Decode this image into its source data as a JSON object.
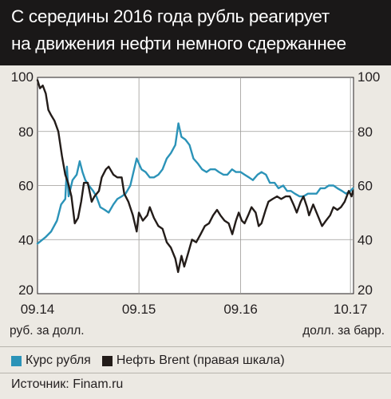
{
  "title_line1": "С середины 2016 года рубль реагирует",
  "title_line2": "на движения нефти немного сдержаннее",
  "source": "Источник: Finam.ru",
  "colors": {
    "rub": "#2b93b8",
    "brent": "#231c19",
    "background": "#ece9e3"
  },
  "chart_data": {
    "type": "line",
    "x_tick_labels": [
      "09.14",
      "09.15",
      "09.16",
      "10.17"
    ],
    "xlim": [
      "2014-09",
      "2017-10"
    ],
    "y_left": {
      "label": "руб. за долл.",
      "ylim": [
        20,
        100
      ],
      "ticks": [
        20,
        40,
        60,
        80,
        100
      ]
    },
    "y_right": {
      "label": "долл. за барр.",
      "ylim": [
        20,
        100
      ],
      "ticks": [
        20,
        40,
        60,
        80,
        100
      ]
    },
    "grid": true,
    "legend_position": "bottom",
    "series": [
      {
        "name": "Курс рубля",
        "axis": "left",
        "color": "#2b93b8",
        "points": [
          [
            "2014-09-01",
            38.5
          ],
          [
            "2014-10-01",
            41
          ],
          [
            "2014-10-20",
            43
          ],
          [
            "2014-11-10",
            47
          ],
          [
            "2014-11-25",
            53
          ],
          [
            "2014-12-10",
            55
          ],
          [
            "2014-12-16",
            67
          ],
          [
            "2014-12-22",
            56
          ],
          [
            "2015-01-05",
            62
          ],
          [
            "2015-01-20",
            64
          ],
          [
            "2015-01-31",
            69
          ],
          [
            "2015-02-10",
            65
          ],
          [
            "2015-02-20",
            62
          ],
          [
            "2015-03-05",
            60
          ],
          [
            "2015-03-20",
            58
          ],
          [
            "2015-04-01",
            56
          ],
          [
            "2015-04-15",
            52
          ],
          [
            "2015-05-01",
            51
          ],
          [
            "2015-05-15",
            50
          ],
          [
            "2015-06-01",
            53
          ],
          [
            "2015-06-15",
            55
          ],
          [
            "2015-07-01",
            56
          ],
          [
            "2015-07-15",
            57
          ],
          [
            "2015-08-01",
            60
          ],
          [
            "2015-08-10",
            64
          ],
          [
            "2015-08-24",
            70
          ],
          [
            "2015-09-10",
            66
          ],
          [
            "2015-09-25",
            65
          ],
          [
            "2015-10-10",
            63
          ],
          [
            "2015-10-25",
            63
          ],
          [
            "2015-11-10",
            64
          ],
          [
            "2015-11-25",
            66
          ],
          [
            "2015-12-10",
            70
          ],
          [
            "2015-12-25",
            72
          ],
          [
            "2016-01-10",
            75
          ],
          [
            "2016-01-21",
            83
          ],
          [
            "2016-02-01",
            78
          ],
          [
            "2016-02-15",
            77
          ],
          [
            "2016-03-01",
            75
          ],
          [
            "2016-03-15",
            70
          ],
          [
            "2016-04-01",
            68
          ],
          [
            "2016-04-15",
            66
          ],
          [
            "2016-05-01",
            65
          ],
          [
            "2016-05-15",
            66
          ],
          [
            "2016-06-01",
            66
          ],
          [
            "2016-06-15",
            65
          ],
          [
            "2016-07-01",
            64
          ],
          [
            "2016-07-15",
            64
          ],
          [
            "2016-08-01",
            66
          ],
          [
            "2016-08-15",
            65
          ],
          [
            "2016-09-01",
            65
          ],
          [
            "2016-09-15",
            64
          ],
          [
            "2016-10-01",
            63
          ],
          [
            "2016-10-15",
            62
          ],
          [
            "2016-11-01",
            64
          ],
          [
            "2016-11-15",
            65
          ],
          [
            "2016-12-01",
            64
          ],
          [
            "2016-12-15",
            61
          ],
          [
            "2017-01-01",
            61
          ],
          [
            "2017-01-15",
            59
          ],
          [
            "2017-02-01",
            60
          ],
          [
            "2017-02-15",
            58
          ],
          [
            "2017-03-01",
            58
          ],
          [
            "2017-03-15",
            57
          ],
          [
            "2017-04-01",
            56
          ],
          [
            "2017-04-15",
            56
          ],
          [
            "2017-05-01",
            57
          ],
          [
            "2017-05-15",
            57
          ],
          [
            "2017-06-01",
            57
          ],
          [
            "2017-06-15",
            59
          ],
          [
            "2017-07-01",
            59
          ],
          [
            "2017-07-15",
            60
          ],
          [
            "2017-08-01",
            60
          ],
          [
            "2017-08-15",
            59
          ],
          [
            "2017-09-01",
            58
          ],
          [
            "2017-09-15",
            57
          ],
          [
            "2017-10-01",
            58
          ],
          [
            "2017-10-10",
            59
          ]
        ]
      },
      {
        "name": "Нефть Brent (правая шкала)",
        "axis": "right",
        "color": "#231c19",
        "points": [
          [
            "2014-09-01",
            99
          ],
          [
            "2014-09-10",
            96
          ],
          [
            "2014-09-20",
            97
          ],
          [
            "2014-10-01",
            94
          ],
          [
            "2014-10-10",
            88
          ],
          [
            "2014-10-20",
            86
          ],
          [
            "2014-11-01",
            84
          ],
          [
            "2014-11-15",
            80
          ],
          [
            "2014-11-28",
            71
          ],
          [
            "2014-12-10",
            64
          ],
          [
            "2014-12-20",
            61
          ],
          [
            "2015-01-01",
            56
          ],
          [
            "2015-01-13",
            46
          ],
          [
            "2015-01-25",
            48
          ],
          [
            "2015-02-05",
            54
          ],
          [
            "2015-02-15",
            61
          ],
          [
            "2015-03-01",
            61
          ],
          [
            "2015-03-15",
            54
          ],
          [
            "2015-03-25",
            56
          ],
          [
            "2015-04-10",
            58
          ],
          [
            "2015-04-20",
            63
          ],
          [
            "2015-05-05",
            66
          ],
          [
            "2015-05-15",
            67
          ],
          [
            "2015-06-01",
            64
          ],
          [
            "2015-06-15",
            63
          ],
          [
            "2015-07-01",
            63
          ],
          [
            "2015-07-10",
            57
          ],
          [
            "2015-07-25",
            54
          ],
          [
            "2015-08-10",
            49
          ],
          [
            "2015-08-24",
            43
          ],
          [
            "2015-09-01",
            50
          ],
          [
            "2015-09-15",
            47
          ],
          [
            "2015-10-01",
            49
          ],
          [
            "2015-10-10",
            52
          ],
          [
            "2015-10-25",
            48
          ],
          [
            "2015-11-10",
            45
          ],
          [
            "2015-11-25",
            44
          ],
          [
            "2015-12-10",
            39
          ],
          [
            "2015-12-25",
            37
          ],
          [
            "2016-01-10",
            33
          ],
          [
            "2016-01-20",
            28
          ],
          [
            "2016-02-01",
            34
          ],
          [
            "2016-02-11",
            30
          ],
          [
            "2016-02-25",
            35
          ],
          [
            "2016-03-10",
            40
          ],
          [
            "2016-03-25",
            39
          ],
          [
            "2016-04-10",
            42
          ],
          [
            "2016-04-25",
            45
          ],
          [
            "2016-05-10",
            46
          ],
          [
            "2016-05-25",
            49
          ],
          [
            "2016-06-08",
            51
          ],
          [
            "2016-06-20",
            49
          ],
          [
            "2016-07-05",
            47
          ],
          [
            "2016-07-20",
            46
          ],
          [
            "2016-08-02",
            42
          ],
          [
            "2016-08-15",
            47
          ],
          [
            "2016-08-25",
            50
          ],
          [
            "2016-09-05",
            47
          ],
          [
            "2016-09-15",
            46
          ],
          [
            "2016-09-28",
            49
          ],
          [
            "2016-10-10",
            52
          ],
          [
            "2016-10-25",
            50
          ],
          [
            "2016-11-05",
            45
          ],
          [
            "2016-11-15",
            46
          ],
          [
            "2016-11-30",
            51
          ],
          [
            "2016-12-10",
            54
          ],
          [
            "2016-12-25",
            55
          ],
          [
            "2017-01-10",
            56
          ],
          [
            "2017-01-25",
            55
          ],
          [
            "2017-02-10",
            56
          ],
          [
            "2017-02-25",
            56
          ],
          [
            "2017-03-10",
            53
          ],
          [
            "2017-03-22",
            50
          ],
          [
            "2017-04-05",
            54
          ],
          [
            "2017-04-15",
            56
          ],
          [
            "2017-04-28",
            52
          ],
          [
            "2017-05-05",
            49
          ],
          [
            "2017-05-20",
            53
          ],
          [
            "2017-06-05",
            49
          ],
          [
            "2017-06-21",
            45
          ],
          [
            "2017-07-05",
            47
          ],
          [
            "2017-07-20",
            49
          ],
          [
            "2017-08-01",
            52
          ],
          [
            "2017-08-15",
            51
          ],
          [
            "2017-08-28",
            52
          ],
          [
            "2017-09-10",
            54
          ],
          [
            "2017-09-25",
            58
          ],
          [
            "2017-10-05",
            56
          ],
          [
            "2017-10-10",
            58
          ]
        ]
      }
    ]
  }
}
